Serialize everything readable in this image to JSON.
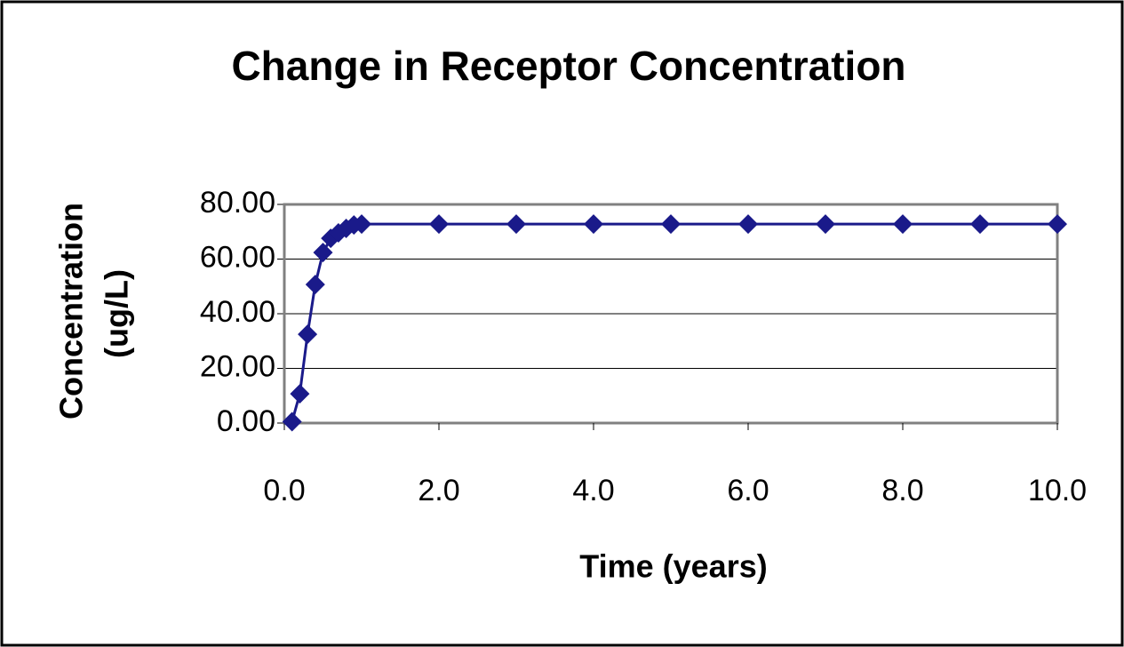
{
  "chart_data": {
    "type": "line",
    "title": "Change in Receptor Concentration",
    "xlabel": "Time (years)",
    "ylabel": [
      "Concentration",
      "(ug/L)"
    ],
    "x": [
      0.1,
      0.2,
      0.3,
      0.4,
      0.5,
      0.6,
      0.7,
      0.8,
      0.9,
      1.0,
      2,
      3,
      4,
      5,
      6,
      7,
      8,
      9,
      10
    ],
    "series": [
      {
        "name": "Concentration",
        "color": "#1a1a8a",
        "values": [
          0.5,
          10.7,
          32.5,
          50.7,
          62.4,
          67.6,
          69.6,
          71.2,
          72.5,
          72.8,
          72.8,
          72.8,
          72.8,
          72.8,
          72.8,
          72.8,
          72.8,
          72.8,
          72.8
        ]
      }
    ],
    "xlim": [
      0,
      10
    ],
    "xticks": [
      {
        "value": 0,
        "label": "0.0"
      },
      {
        "value": 2,
        "label": "2.0"
      },
      {
        "value": 4,
        "label": "4.0"
      },
      {
        "value": 6,
        "label": "6.0"
      },
      {
        "value": 8,
        "label": "8.0"
      },
      {
        "value": 10,
        "label": "10.0"
      }
    ],
    "ylim": [
      0,
      80
    ],
    "yticks": [
      {
        "value": 0,
        "label": "0.00"
      },
      {
        "value": 20,
        "label": "20.00"
      },
      {
        "value": 40,
        "label": "40.00"
      },
      {
        "value": 60,
        "label": "60.00"
      },
      {
        "value": 80,
        "label": "80.00"
      }
    ],
    "grid": true
  }
}
